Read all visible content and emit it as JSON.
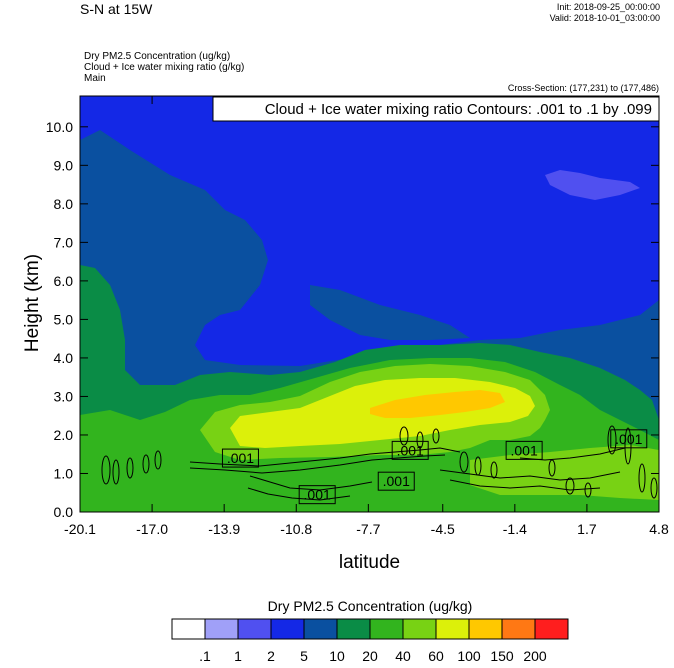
{
  "header": {
    "title": "S-N at 15W",
    "init": "Init: 2018-09-25_00:00:00",
    "valid": "Valid: 2018-10-01_03:00:00",
    "desc_lines": [
      "Dry PM2.5 Concentration   (ug/kg)",
      "Cloud + Ice water mixing ratio   (g/kg)",
      "Main"
    ],
    "cross_section": "Cross-Section: (177,231) to (177,486)"
  },
  "chart_data": {
    "type": "heatmap",
    "title": "",
    "xlabel": "latitude",
    "ylabel": "Height (km)",
    "x_ticks": [
      "-20.1",
      "-17.0",
      "-13.9",
      "-10.8",
      "-7.7",
      "-4.5",
      "-1.4",
      "1.7",
      "4.8"
    ],
    "y_ticks": [
      "0.0",
      "1.0",
      "2.0",
      "3.0",
      "4.0",
      "5.0",
      "6.0",
      "7.0",
      "8.0",
      "9.0",
      "10.0"
    ],
    "xlim": [
      -20.1,
      4.8
    ],
    "ylim": [
      0,
      10.8
    ],
    "contour_info": "Cloud + Ice water mixing ratio Contours: .001 to .1 by .099",
    "contour_labels": [
      {
        "text": ".001",
        "x": -13.2,
        "y": 1.4
      },
      {
        "text": ".001",
        "x": -5.9,
        "y": 1.6
      },
      {
        "text": ".001",
        "x": -9.9,
        "y": 0.45
      },
      {
        "text": ".001",
        "x": -6.5,
        "y": 0.8
      },
      {
        "text": ".001",
        "x": -1.0,
        "y": 1.6
      },
      {
        "text": ".001",
        "x": 3.5,
        "y": 1.9
      }
    ],
    "colorbar": {
      "title": "Dry PM2.5 Concentration  (ug/kg)",
      "labels": [
        ".1",
        "1",
        "2",
        "5",
        "10",
        "20",
        "40",
        "60",
        "100",
        "150",
        "200"
      ],
      "colors": [
        "#ffffff",
        "#a0a0f8",
        "#5050f0",
        "#1428e6",
        "#0a50a0",
        "#0a8c46",
        "#32b41e",
        "#78d214",
        "#dcf00a",
        "#ffc800",
        "#ff7814",
        "#ff1e1e"
      ]
    }
  }
}
